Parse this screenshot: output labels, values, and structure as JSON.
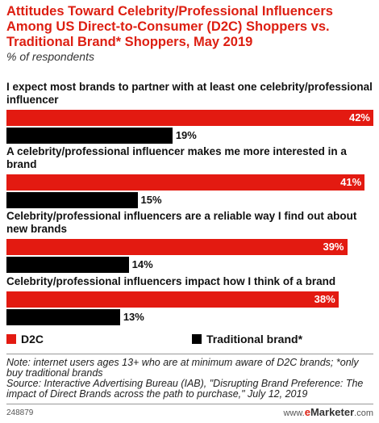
{
  "chart_data": {
    "type": "bar",
    "orientation": "horizontal",
    "title": "Attitudes Toward Celebrity/Professional Influencers Among US Direct-to-Consumer (D2C) Shoppers vs. Traditional Brand* Shoppers, May 2019",
    "subtitle": "% of respondents",
    "categories": [
      "I expect most brands to partner with at least one celebrity/professional influencer",
      "A celebrity/professional influencer makes me more interested in a brand",
      "Celebrity/professional influencers are a reliable way I find out about new brands",
      "Celebrity/professional influencers impact how I think of a brand"
    ],
    "series": [
      {
        "name": "D2C",
        "color": "#e31a11",
        "values": [
          42,
          41,
          39,
          38
        ]
      },
      {
        "name": "Traditional brand*",
        "color": "#000000",
        "values": [
          19,
          15,
          14,
          13
        ]
      }
    ],
    "value_suffix": "%",
    "xlim": [
      0,
      42
    ],
    "grid": false,
    "legend": "bottom-left"
  },
  "notes": {
    "note": "Note: internet users ages 13+ who are at minimum aware of D2C brands; *only buy traditional brands",
    "source": "Source: Interactive Advertising Bureau (IAB), \"Disrupting Brand Preference: The impact of Direct Brands across the path to purchase,\" July 12, 2019"
  },
  "footer": {
    "id": "248879",
    "brand_prefix": "www.",
    "brand_e": "e",
    "brand_rest": "Marketer",
    "brand_suffix": ".com"
  }
}
